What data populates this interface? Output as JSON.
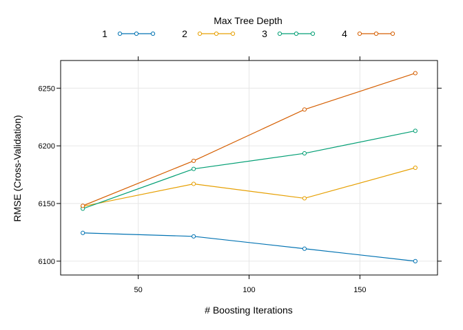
{
  "chart_data": {
    "type": "line",
    "xlabel": "# Boosting Iterations",
    "ylabel": "RMSE (Cross-Validation)",
    "xlim": [
      15,
      185
    ],
    "ylim": [
      6088,
      6274
    ],
    "xticks": [
      50,
      100,
      150
    ],
    "yticks": [
      6100,
      6150,
      6200,
      6250
    ],
    "grid": true,
    "legend": {
      "title": "Max Tree Depth",
      "placement": "top"
    },
    "x": [
      25,
      75,
      125,
      175
    ],
    "series": [
      {
        "name": "1",
        "color": "#0072B2",
        "values": [
          6124.5,
          6121.5,
          6110.8,
          6100.0
        ]
      },
      {
        "name": "2",
        "color": "#E69F00",
        "values": [
          6147.5,
          6167.0,
          6154.5,
          6181.0
        ]
      },
      {
        "name": "3",
        "color": "#009E73",
        "values": [
          6145.5,
          6180.0,
          6193.5,
          6213.0
        ]
      },
      {
        "name": "4",
        "color": "#D55E00",
        "values": [
          6148.0,
          6187.0,
          6231.5,
          6263.0
        ]
      }
    ]
  }
}
